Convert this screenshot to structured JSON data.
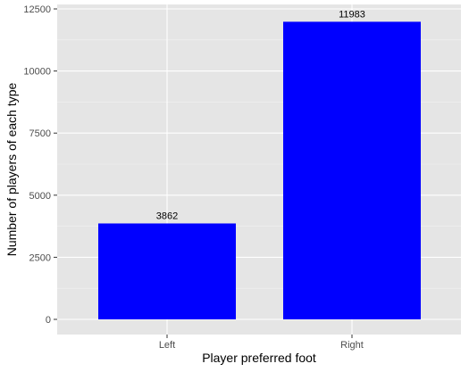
{
  "chart_data": {
    "type": "bar",
    "categories": [
      "Left",
      "Right"
    ],
    "values": [
      3862,
      11983
    ],
    "data_labels": [
      "3862",
      "11983"
    ],
    "xlabel": "Player preferred foot",
    "ylabel": "Number of players of each type",
    "ylim": [
      -600,
      12500
    ],
    "yticks": [
      0,
      2500,
      5000,
      7500,
      10000,
      12500
    ],
    "ytick_labels": [
      "0",
      "2500",
      "5000",
      "7500",
      "10000",
      "12500"
    ],
    "grid": true,
    "legend": "none",
    "colors": {
      "bar": "#0000ff",
      "panel_background": "#e5e5e5",
      "grid_major": "#ffffff",
      "grid_minor": "#f2f2f2",
      "tick": "#333333"
    }
  }
}
